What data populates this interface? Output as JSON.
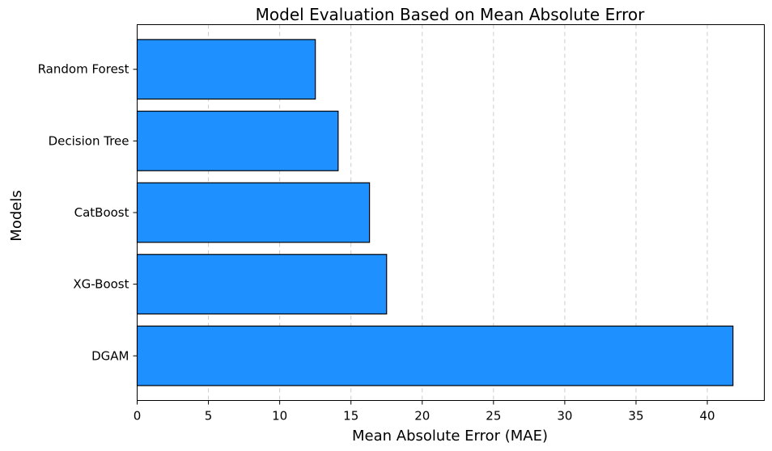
{
  "chart_data": {
    "type": "bar",
    "orientation": "horizontal",
    "title": "Model Evaluation Based on Mean Absolute Error",
    "xlabel": "Mean Absolute Error (MAE)",
    "ylabel": "Models",
    "categories": [
      "DGAM",
      "XG-Boost",
      "CatBoost",
      "Decision Tree",
      "Random Forest"
    ],
    "values": [
      41.8,
      17.5,
      16.3,
      14.1,
      12.5
    ],
    "xlim": [
      0,
      44
    ],
    "xticks": [
      0,
      5,
      10,
      15,
      20,
      25,
      30,
      35,
      40
    ],
    "grid": "x-dashed",
    "bar_color": "#1E90FF",
    "bar_edge_color": "#000000",
    "grid_color": "#cccccc"
  }
}
